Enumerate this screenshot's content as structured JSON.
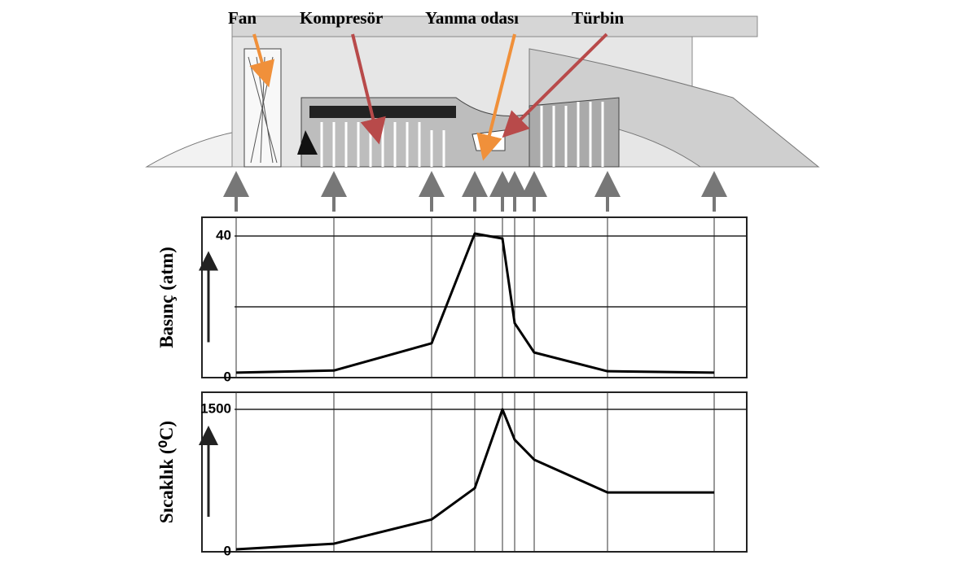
{
  "labels": [
    "Fan",
    "Kompresör",
    "Yanma odası",
    "Türbin"
  ],
  "chart_data": [
    {
      "type": "line",
      "ylabel": "Basınç (atm)",
      "categories": [
        null,
        null,
        null,
        null,
        null,
        null,
        null,
        null,
        null
      ],
      "series": [
        {
          "color": "#000000",
          "values": [
            1.4,
            2,
            9.7,
            40.7,
            39.3,
            15.4,
            7.1,
            1.8,
            1.4
          ]
        }
      ],
      "ylim": [
        0,
        45.3
      ],
      "yticks": [
        0,
        {
          "value": 20,
          "label": null
        },
        40
      ],
      "grid": true
    },
    {
      "type": "line",
      "ylabel": "Sıcaklık  (⁰C)",
      "categories": [
        null,
        null,
        null,
        null,
        null,
        null,
        null,
        null,
        null
      ],
      "series": [
        {
          "color": "#000000",
          "values": [
            26,
            85,
            340,
            670,
            1500,
            1180,
            970,
            625,
            625
          ]
        }
      ],
      "ylim": [
        0,
        1680
      ],
      "yticks": [
        0,
        1500
      ],
      "grid": true
    }
  ]
}
